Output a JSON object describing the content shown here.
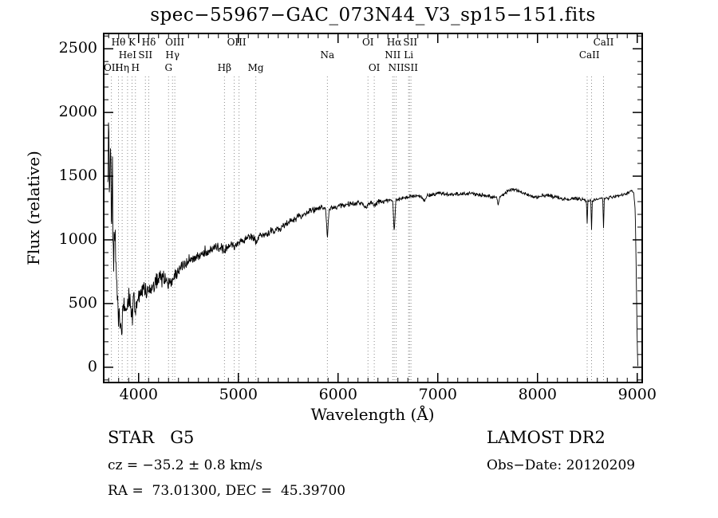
{
  "title": "spec−55967−GAC_073N44_V3_sp15−151.fits",
  "annotations": {
    "classification": "STAR   G5",
    "survey": "LAMOST DR2",
    "cz": "cz = −35.2 ± 0.8 km/s",
    "obs_date": "Obs−Date: 20120209",
    "ra_dec": "RA =  73.01300, DEC =  45.39700"
  },
  "chart_data": {
    "type": "line",
    "title": "spec−55967−GAC_073N44_V3_sp15−151.fits",
    "xlabel": "Wavelength (Å)",
    "ylabel": "Flux (relative)",
    "xlim": [
      3650,
      9050
    ],
    "ylim": [
      -120,
      2620
    ],
    "x_major_ticks": [
      4000,
      5000,
      6000,
      7000,
      8000,
      9000
    ],
    "x_minor_step": 100,
    "y_major_ticks": [
      0,
      500,
      1000,
      1500,
      2000,
      2500
    ],
    "y_minor_step": 100,
    "grid": false,
    "legend": "none",
    "line_color": "#000000",
    "marker_line_color": "#8a8a8a",
    "noise_seed": 20120209,
    "sample_step": 4,
    "marker_lines": [
      3727,
      3798,
      3835,
      3889,
      3934,
      3968,
      4068,
      4102,
      4300,
      4340,
      4363,
      4861,
      4959,
      5007,
      5175,
      5893,
      6300,
      6363,
      6548,
      6563,
      6583,
      6707,
      6716,
      6731,
      8498,
      8542,
      8662
    ],
    "marker_labels": [
      {
        "wavelength": 3798,
        "label": "Hθ",
        "row": 1
      },
      {
        "wavelength": 3934,
        "label": "K",
        "row": 1
      },
      {
        "wavelength": 4102,
        "label": "Hδ",
        "row": 1
      },
      {
        "wavelength": 4363,
        "label": "OIII",
        "row": 1
      },
      {
        "wavelength": 4983,
        "label": "OIII",
        "row": 1
      },
      {
        "wavelength": 6300,
        "label": "OI",
        "row": 1
      },
      {
        "wavelength": 6563,
        "label": "Hα",
        "row": 1
      },
      {
        "wavelength": 6724,
        "label": "SII",
        "row": 1
      },
      {
        "wavelength": 8662,
        "label": "CaII",
        "row": 1
      },
      {
        "wavelength": 3889,
        "label": "HeI",
        "row": 2
      },
      {
        "wavelength": 4068,
        "label": "SII",
        "row": 2
      },
      {
        "wavelength": 4340,
        "label": "Hγ",
        "row": 2
      },
      {
        "wavelength": 5893,
        "label": "Na",
        "row": 2
      },
      {
        "wavelength": 6548,
        "label": "NII",
        "row": 2
      },
      {
        "wavelength": 6707,
        "label": "Li",
        "row": 2
      },
      {
        "wavelength": 8520,
        "label": "CaII",
        "row": 2
      },
      {
        "wavelength": 3727,
        "label": "OII",
        "row": 3
      },
      {
        "wavelength": 3835,
        "label": "Hη",
        "row": 3
      },
      {
        "wavelength": 3968,
        "label": "H",
        "row": 3
      },
      {
        "wavelength": 4300,
        "label": "G",
        "row": 3
      },
      {
        "wavelength": 4861,
        "label": "Hβ",
        "row": 3
      },
      {
        "wavelength": 5175,
        "label": "Mg",
        "row": 3
      },
      {
        "wavelength": 6363,
        "label": "OI",
        "row": 3
      },
      {
        "wavelength": 6583,
        "label": "NII",
        "row": 3
      },
      {
        "wavelength": 6731,
        "label": "SII",
        "row": 3
      }
    ],
    "spectrum_anchors": [
      [
        3690,
        1500,
        350
      ],
      [
        3700,
        1900,
        140
      ],
      [
        3708,
        1350,
        300
      ],
      [
        3718,
        1750,
        250
      ],
      [
        3728,
        1050,
        300
      ],
      [
        3738,
        1500,
        280
      ],
      [
        3750,
        800,
        250
      ],
      [
        3762,
        1200,
        280
      ],
      [
        3775,
        650,
        200
      ],
      [
        3790,
        480,
        160
      ],
      [
        3810,
        380,
        130
      ],
      [
        3830,
        290,
        90
      ],
      [
        3850,
        520,
        160
      ],
      [
        3870,
        420,
        130
      ],
      [
        3890,
        560,
        150
      ],
      [
        3912,
        480,
        130
      ],
      [
        3934,
        400,
        110
      ],
      [
        3952,
        560,
        130
      ],
      [
        3968,
        430,
        110
      ],
      [
        3985,
        530,
        120
      ],
      [
        4000,
        570,
        110
      ],
      [
        4050,
        620,
        95
      ],
      [
        4100,
        575,
        85
      ],
      [
        4150,
        645,
        85
      ],
      [
        4200,
        685,
        80
      ],
      [
        4250,
        705,
        78
      ],
      [
        4300,
        660,
        72
      ],
      [
        4340,
        670,
        68
      ],
      [
        4400,
        760,
        66
      ],
      [
        4450,
        800,
        62
      ],
      [
        4500,
        830,
        60
      ],
      [
        4550,
        855,
        58
      ],
      [
        4600,
        880,
        56
      ],
      [
        4650,
        900,
        54
      ],
      [
        4700,
        915,
        52
      ],
      [
        4750,
        930,
        50
      ],
      [
        4800,
        945,
        48
      ],
      [
        4830,
        950,
        46
      ],
      [
        4861,
        900,
        40
      ],
      [
        4890,
        960,
        46
      ],
      [
        4930,
        970,
        45
      ],
      [
        4959,
        950,
        42
      ],
      [
        5000,
        990,
        45
      ],
      [
        5040,
        1000,
        44
      ],
      [
        5080,
        1010,
        43
      ],
      [
        5120,
        1015,
        42
      ],
      [
        5155,
        1020,
        40
      ],
      [
        5175,
        970,
        36
      ],
      [
        5210,
        1030,
        40
      ],
      [
        5250,
        1040,
        40
      ],
      [
        5300,
        1055,
        40
      ],
      [
        5350,
        1070,
        38
      ],
      [
        5400,
        1090,
        38
      ],
      [
        5450,
        1110,
        36
      ],
      [
        5500,
        1130,
        36
      ],
      [
        5550,
        1160,
        34
      ],
      [
        5600,
        1180,
        34
      ],
      [
        5650,
        1200,
        32
      ],
      [
        5700,
        1220,
        32
      ],
      [
        5750,
        1235,
        30
      ],
      [
        5800,
        1245,
        30
      ],
      [
        5845,
        1250,
        26
      ],
      [
        5875,
        1245,
        22
      ],
      [
        5893,
        1010,
        14
      ],
      [
        5911,
        1250,
        22
      ],
      [
        5950,
        1255,
        28
      ],
      [
        6000,
        1265,
        28
      ],
      [
        6050,
        1270,
        26
      ],
      [
        6100,
        1280,
        26
      ],
      [
        6150,
        1285,
        26
      ],
      [
        6200,
        1290,
        24
      ],
      [
        6250,
        1280,
        24
      ],
      [
        6280,
        1250,
        20
      ],
      [
        6305,
        1285,
        22
      ],
      [
        6340,
        1290,
        22
      ],
      [
        6363,
        1270,
        20
      ],
      [
        6400,
        1300,
        22
      ],
      [
        6450,
        1305,
        22
      ],
      [
        6500,
        1310,
        20
      ],
      [
        6548,
        1308,
        16
      ],
      [
        6563,
        1060,
        12
      ],
      [
        6580,
        1315,
        16
      ],
      [
        6620,
        1320,
        20
      ],
      [
        6680,
        1330,
        20
      ],
      [
        6740,
        1340,
        20
      ],
      [
        6800,
        1345,
        20
      ],
      [
        6850,
        1330,
        18
      ],
      [
        6867,
        1300,
        15
      ],
      [
        6890,
        1345,
        18
      ],
      [
        6950,
        1355,
        18
      ],
      [
        7000,
        1365,
        18
      ],
      [
        7060,
        1360,
        18
      ],
      [
        7120,
        1355,
        18
      ],
      [
        7180,
        1360,
        18
      ],
      [
        7240,
        1355,
        18
      ],
      [
        7300,
        1365,
        18
      ],
      [
        7360,
        1360,
        18
      ],
      [
        7420,
        1355,
        18
      ],
      [
        7480,
        1348,
        18
      ],
      [
        7540,
        1338,
        16
      ],
      [
        7594,
        1330,
        14
      ],
      [
        7605,
        1265,
        12
      ],
      [
        7620,
        1330,
        14
      ],
      [
        7660,
        1360,
        16
      ],
      [
        7700,
        1385,
        16
      ],
      [
        7750,
        1395,
        16
      ],
      [
        7800,
        1390,
        16
      ],
      [
        7850,
        1372,
        16
      ],
      [
        7900,
        1352,
        18
      ],
      [
        7950,
        1342,
        18
      ],
      [
        8000,
        1336,
        20
      ],
      [
        8050,
        1346,
        20
      ],
      [
        8100,
        1352,
        20
      ],
      [
        8150,
        1342,
        20
      ],
      [
        8200,
        1336,
        20
      ],
      [
        8250,
        1322,
        18
      ],
      [
        8300,
        1316,
        18
      ],
      [
        8350,
        1322,
        18
      ],
      [
        8400,
        1326,
        18
      ],
      [
        8450,
        1316,
        16
      ],
      [
        8490,
        1306,
        13
      ],
      [
        8498,
        1130,
        9
      ],
      [
        8506,
        1306,
        13
      ],
      [
        8534,
        1310,
        11
      ],
      [
        8542,
        1080,
        9
      ],
      [
        8550,
        1310,
        11
      ],
      [
        8600,
        1320,
        13
      ],
      [
        8654,
        1326,
        11
      ],
      [
        8662,
        1090,
        9
      ],
      [
        8670,
        1326,
        11
      ],
      [
        8720,
        1330,
        15
      ],
      [
        8780,
        1340,
        15
      ],
      [
        8840,
        1350,
        14
      ],
      [
        8900,
        1365,
        13
      ],
      [
        8940,
        1385,
        11
      ],
      [
        8965,
        1372,
        9
      ],
      [
        8980,
        1230,
        7
      ],
      [
        8990,
        750,
        5
      ],
      [
        9000,
        180,
        4
      ],
      [
        9006,
        10,
        2
      ]
    ]
  }
}
